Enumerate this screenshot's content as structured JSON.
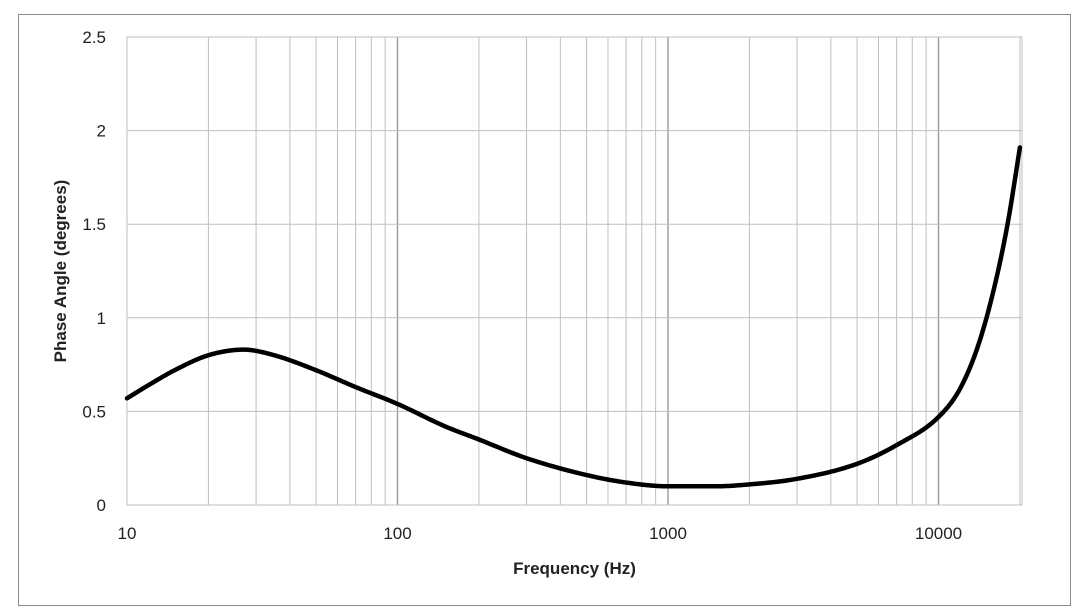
{
  "chart_data": {
    "type": "line",
    "title": "",
    "xlabel": "Frequency (Hz)",
    "ylabel": "Phase Angle (degrees)",
    "x_scale": "log",
    "xlim": [
      10,
      20000
    ],
    "ylim": [
      0,
      2.5
    ],
    "x_ticks": [
      "10",
      "100",
      "1000",
      "10000"
    ],
    "y_ticks": [
      "0",
      "0.5",
      "1",
      "1.5",
      "2",
      "2.5"
    ],
    "grid": true,
    "legend": "none",
    "line_color": "#000000",
    "grid_color": "#bfbfbf",
    "series": [
      {
        "x": [
          10,
          12,
          15,
          20,
          27,
          35,
          50,
          70,
          100,
          150,
          200,
          300,
          500,
          700,
          1000,
          1500,
          2000,
          3000,
          5000,
          7000,
          10000,
          12000,
          14000,
          16000,
          18000,
          20000
        ],
        "values": [
          0.57,
          0.64,
          0.72,
          0.8,
          0.83,
          0.8,
          0.72,
          0.63,
          0.54,
          0.42,
          0.35,
          0.25,
          0.16,
          0.12,
          0.1,
          0.1,
          0.11,
          0.14,
          0.22,
          0.32,
          0.47,
          0.62,
          0.85,
          1.15,
          1.5,
          1.91
        ]
      }
    ]
  }
}
